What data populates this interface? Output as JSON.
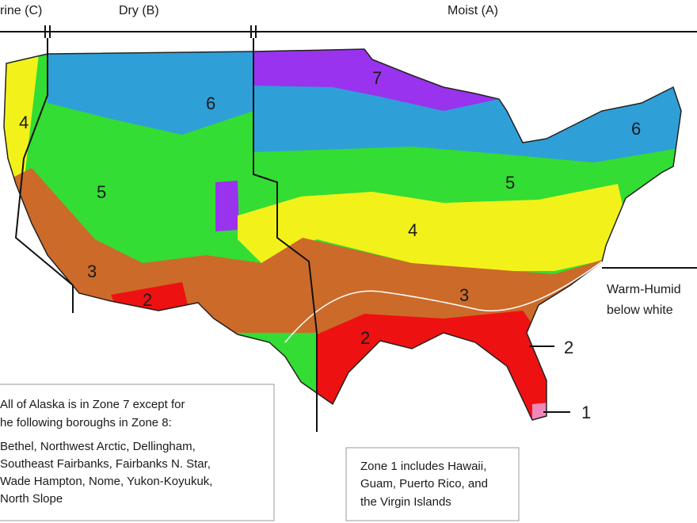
{
  "header": {
    "marine": "rine (C)",
    "dry": "Dry (B)",
    "moist": "Moist (A)"
  },
  "zone_labels": [
    "7",
    "6",
    "6",
    "4",
    "5",
    "5",
    "4",
    "3",
    "3",
    "2",
    "2",
    "2",
    "1"
  ],
  "warm_humid_note": [
    "Warm-Humid",
    "below white"
  ],
  "alaska_note": [
    "All of Alaska is in Zone 7 except for",
    "he following boroughs in Zone 8:",
    "Bethel, Northwest Arctic, Dellingham,",
    "Southeast Fairbanks, Fairbanks N. Star,",
    "Wade Hampton, Nome, Yukon-Koyukuk,",
    "North Slope"
  ],
  "zone1_note": [
    "Zone 1 includes Hawaii,",
    "Guam, Puerto Rico, and",
    "the Virgin Islands"
  ]
}
